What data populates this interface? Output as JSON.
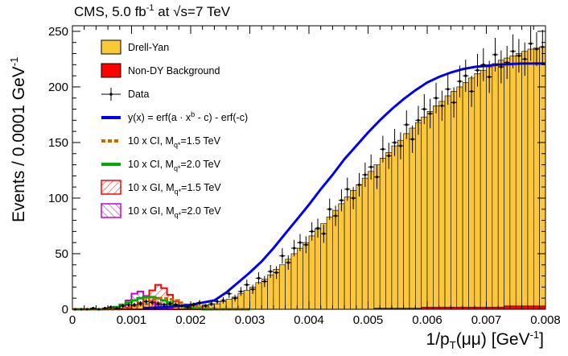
{
  "chart_data": {
    "type": "histogram",
    "title_prefix": "CMS, 5.0 fb",
    "title_sup": "-1",
    "title_mid": " at ",
    "title_sqrt": "√s",
    "title_suffix": "=7 TeV",
    "xlabel": "1/p",
    "xlabel_sub": "T",
    "xlabel_mid": "(μμ) [",
    "xlabel_unit": "GeV",
    "xlabel_unit_sup": "-1",
    "xlabel_close": "]",
    "ylabel": "Events / 0.0001 GeV",
    "ylabel_sup": "-1",
    "xlim": [
      0,
      0.008
    ],
    "ylim": [
      0,
      255
    ],
    "xticks": [
      "0",
      "0.001",
      "0.002",
      "0.003",
      "0.004",
      "0.005",
      "0.006",
      "0.007",
      "0.008"
    ],
    "yticks": [
      "0",
      "50",
      "100",
      "150",
      "200",
      "250"
    ],
    "bin_width": 0.0001,
    "drell_yan": [
      0,
      0,
      0,
      0,
      0,
      0,
      0,
      1,
      1,
      2,
      3,
      4,
      5,
      6,
      6,
      5,
      4,
      4,
      3,
      3,
      3,
      3,
      4,
      4,
      5,
      7,
      9,
      11,
      14,
      17,
      20,
      24,
      27,
      31,
      36,
      40,
      45,
      50,
      55,
      60,
      66,
      72,
      77,
      83,
      89,
      95,
      101,
      107,
      112,
      118,
      124,
      130,
      136,
      141,
      147,
      152,
      158,
      163,
      168,
      173,
      178,
      183,
      187,
      192,
      196,
      200,
      204,
      208,
      212,
      215,
      218,
      221,
      224,
      226,
      228,
      230,
      232,
      234,
      235,
      236
    ],
    "non_dy": [
      0,
      0,
      0,
      0,
      0,
      0,
      0,
      0,
      0,
      0,
      0,
      0,
      0,
      0,
      0,
      0,
      0,
      0,
      0,
      0,
      0,
      0,
      0,
      0,
      0,
      0,
      0,
      0,
      0,
      0,
      0,
      0,
      0,
      0,
      0,
      0,
      0,
      0,
      0,
      0,
      0,
      0,
      0,
      0,
      0,
      0,
      0,
      0,
      0,
      0,
      0,
      1,
      1,
      1,
      1,
      1,
      1,
      1,
      1,
      2,
      2,
      2,
      2,
      2,
      2,
      2,
      2,
      2,
      2,
      2,
      2,
      2,
      2,
      3,
      3,
      3,
      3,
      3,
      3,
      3
    ],
    "data_points": [
      0,
      0,
      0,
      1,
      0,
      1,
      2,
      1,
      3,
      4,
      4,
      5,
      7,
      6,
      5,
      4,
      5,
      4,
      3,
      2,
      4,
      6,
      3,
      5,
      7,
      8,
      14,
      10,
      16,
      22,
      18,
      28,
      25,
      34,
      33,
      48,
      42,
      55,
      60,
      58,
      70,
      73,
      68,
      90,
      84,
      98,
      108,
      100,
      112,
      121,
      128,
      119,
      144,
      138,
      150,
      147,
      166,
      153,
      170,
      180,
      176,
      190,
      183,
      198,
      186,
      205,
      210,
      196,
      215,
      220,
      209,
      229,
      218,
      222,
      232,
      228,
      225,
      239,
      234,
      236
    ],
    "fit": [
      [
        0.0012,
        1
      ],
      [
        0.0016,
        2
      ],
      [
        0.002,
        4
      ],
      [
        0.0024,
        8
      ],
      [
        0.0026,
        15
      ],
      [
        0.0028,
        24
      ],
      [
        0.003,
        33
      ],
      [
        0.0032,
        43
      ],
      [
        0.0034,
        55
      ],
      [
        0.0036,
        68
      ],
      [
        0.0038,
        81
      ],
      [
        0.004,
        94
      ],
      [
        0.0042,
        108
      ],
      [
        0.0044,
        121
      ],
      [
        0.0046,
        135
      ],
      [
        0.0048,
        147
      ],
      [
        0.005,
        159
      ],
      [
        0.0052,
        170
      ],
      [
        0.0054,
        180
      ],
      [
        0.0056,
        189
      ],
      [
        0.0058,
        197
      ],
      [
        0.006,
        204
      ],
      [
        0.0062,
        209
      ],
      [
        0.0064,
        213
      ],
      [
        0.0066,
        216
      ],
      [
        0.0068,
        218
      ],
      [
        0.007,
        219
      ],
      [
        0.0072,
        220
      ],
      [
        0.0074,
        220.5
      ],
      [
        0.0076,
        221
      ],
      [
        0.0078,
        221
      ],
      [
        0.008,
        221
      ]
    ],
    "ci_15": [
      0,
      0,
      0,
      0,
      0,
      0,
      0,
      0,
      1,
      2,
      3,
      5,
      7,
      9,
      10,
      10,
      9,
      8,
      6,
      4,
      3,
      2,
      1,
      1,
      0,
      0,
      0,
      0,
      0,
      0
    ],
    "ci_20": [
      0,
      0,
      0,
      0,
      0,
      0,
      1,
      2,
      4,
      6,
      8,
      10,
      11,
      11,
      10,
      8,
      6,
      4,
      3,
      2,
      1,
      1,
      0,
      0,
      0,
      0,
      0,
      0,
      0,
      0
    ],
    "gi_15": [
      0,
      0,
      0,
      0,
      0,
      0,
      0,
      0,
      0,
      1,
      3,
      6,
      11,
      17,
      22,
      19,
      13,
      7,
      3,
      1,
      0,
      0,
      0,
      0,
      0,
      0,
      0,
      0,
      0,
      0
    ],
    "gi_20": [
      0,
      0,
      0,
      0,
      0,
      0,
      0,
      1,
      3,
      8,
      14,
      16,
      12,
      7,
      4,
      2,
      1,
      0,
      0,
      0,
      0,
      0,
      0,
      0,
      0,
      0,
      0,
      0,
      0,
      0
    ],
    "legend": [
      {
        "key": "drell_yan",
        "label": "Drell-Yan"
      },
      {
        "key": "non_dy",
        "label": "Non-DY Background"
      },
      {
        "key": "data",
        "label": "Data"
      },
      {
        "key": "fit",
        "label": "y(x) = erf(a · x",
        "label_sup": "b",
        "label_tail": " - c) - erf(-c)"
      },
      {
        "key": "ci_15",
        "label": "10 x CI, M",
        "label_sub": "q*",
        "label_tail": "=1.5 TeV"
      },
      {
        "key": "ci_20",
        "label": "10 x CI, M",
        "label_sub": "q*",
        "label_tail": "=2.0 TeV"
      },
      {
        "key": "gi_15",
        "label": "10 x GI, M",
        "label_sub": "q*",
        "label_tail": "=1.5 TeV"
      },
      {
        "key": "gi_20",
        "label": "10 x GI, M",
        "label_sub": "q*",
        "label_tail": "=2.0 TeV"
      }
    ],
    "colors": {
      "drell_yan": "#fcc83a",
      "non_dy": "#ff0000",
      "fit": "#0000ee",
      "ci_15": "#cc6600",
      "ci_20": "#00aa00",
      "gi_15": "#ff0000",
      "gi_20": "#cc00cc"
    }
  }
}
